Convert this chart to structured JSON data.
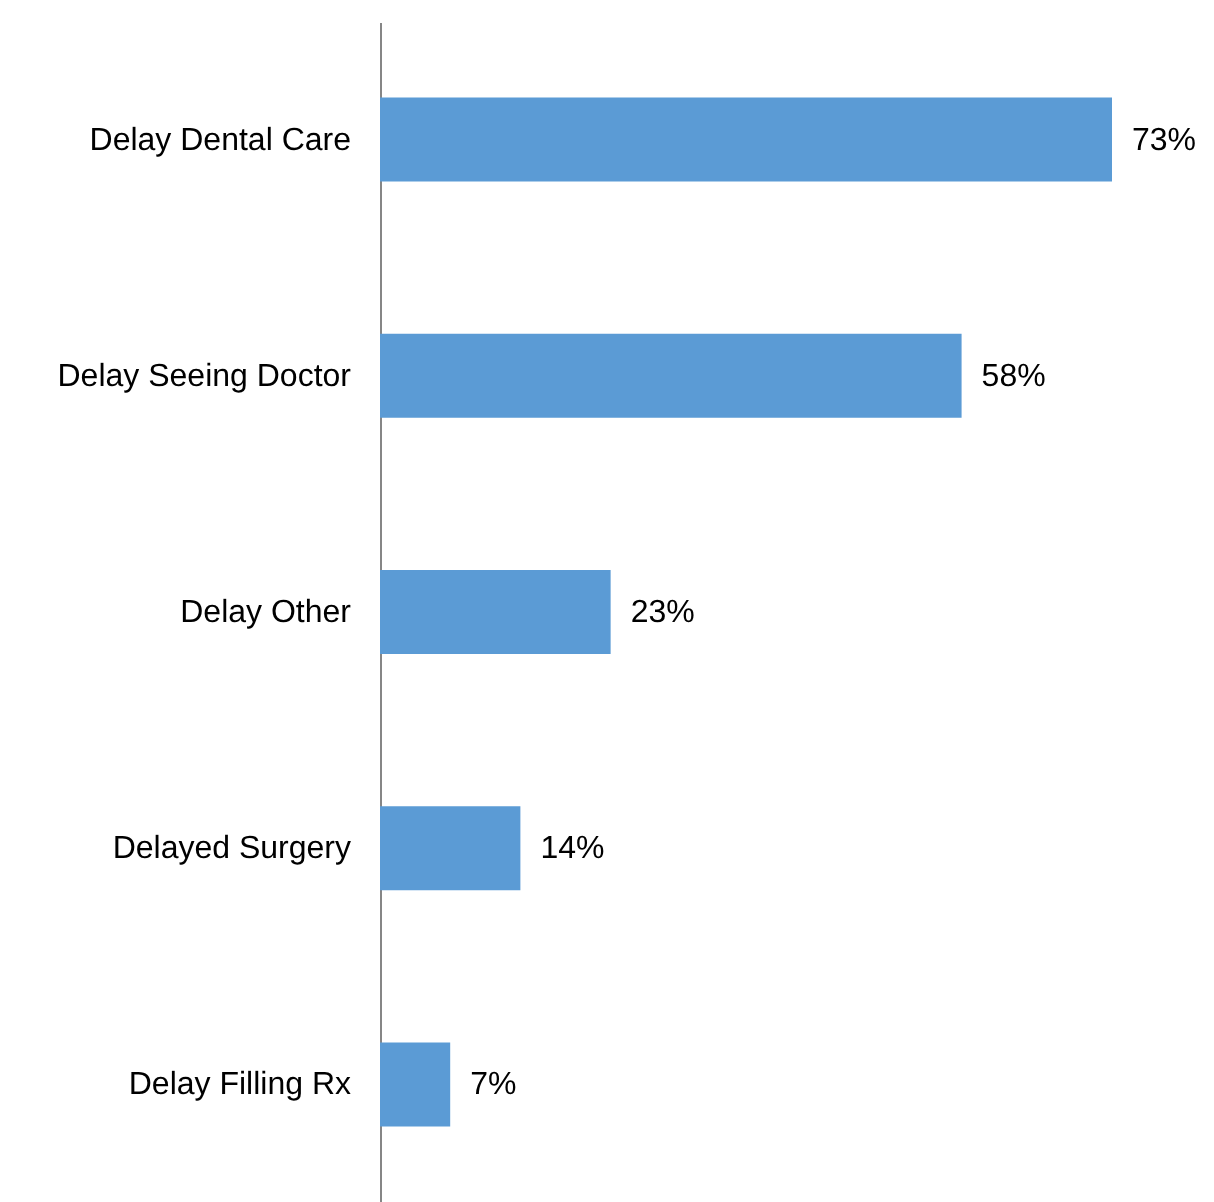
{
  "chart_data": {
    "type": "bar",
    "orientation": "horizontal",
    "categories": [
      "Delay Dental Care",
      "Delay Seeing Doctor",
      "Delay Other",
      "Delayed Surgery",
      "Delay Filling Rx"
    ],
    "values": [
      73,
      58,
      23,
      14,
      7
    ],
    "color": "#5b9bd5",
    "value_labels": [
      "73%",
      "58%",
      "23%",
      "14%",
      "7%"
    ],
    "tick_labels": "y"
  }
}
